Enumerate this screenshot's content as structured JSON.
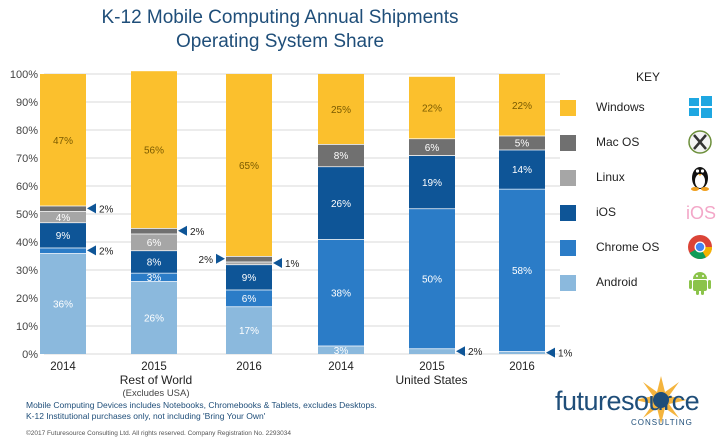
{
  "title_line1": "K-12 Mobile Computing Annual Shipments",
  "title_line2": "Operating System Share",
  "chart_data": {
    "type": "bar",
    "stacked": true,
    "ylim": [
      0,
      100
    ],
    "yticks": [
      "0%",
      "10%",
      "20%",
      "30%",
      "40%",
      "50%",
      "60%",
      "70%",
      "80%",
      "90%",
      "100%"
    ],
    "categories": [
      "2014",
      "2015",
      "2016",
      "2014",
      "2015",
      "2016"
    ],
    "groups": [
      {
        "label": "Rest of World",
        "sublabel": "(Excludes USA)",
        "bars": [
          0,
          1,
          2
        ]
      },
      {
        "label": "United States",
        "sublabel": "",
        "bars": [
          3,
          4,
          5
        ]
      }
    ],
    "series": [
      {
        "name": "Android",
        "color": "#8bb9dd",
        "values": [
          36,
          26,
          17,
          3,
          2,
          1
        ],
        "labels": [
          "36%",
          "26%",
          "17%",
          "3%",
          "",
          ""
        ]
      },
      {
        "name": "Chrome OS",
        "color": "#2b7cc7",
        "values": [
          2,
          3,
          6,
          38,
          50,
          58
        ],
        "labels": [
          "",
          "3%",
          "6%",
          "38%",
          "50%",
          "58%"
        ]
      },
      {
        "name": "iOS",
        "color": "#0e5597",
        "values": [
          9,
          8,
          9,
          26,
          19,
          14
        ],
        "labels": [
          "9%",
          "8%",
          "9%",
          "26%",
          "19%",
          "14%"
        ]
      },
      {
        "name": "Linux",
        "color": "#a6a6a6",
        "values": [
          4,
          6,
          1,
          0,
          0,
          0
        ],
        "labels": [
          "4%",
          "6%",
          "",
          "",
          "",
          ""
        ]
      },
      {
        "name": "Mac OS",
        "color": "#707070",
        "values": [
          2,
          2,
          2,
          8,
          6,
          5
        ],
        "labels": [
          "",
          "",
          "",
          "8%",
          "6%",
          "5%"
        ]
      },
      {
        "name": "Windows",
        "color": "#fbc02d",
        "values": [
          47,
          56,
          65,
          25,
          22,
          22
        ],
        "labels": [
          "47%",
          "56%",
          "65%",
          "25%",
          "22%",
          "22%"
        ]
      }
    ],
    "callouts": [
      {
        "bar": 0,
        "series": 4,
        "text": "2%",
        "side": "right"
      },
      {
        "bar": 0,
        "series": 1,
        "text": "2%",
        "side": "right"
      },
      {
        "bar": 1,
        "series": 4,
        "text": "2%",
        "side": "right"
      },
      {
        "bar": 2,
        "series": 4,
        "text": "2%",
        "side": "left"
      },
      {
        "bar": 2,
        "series": 3,
        "text": "1%",
        "side": "right"
      },
      {
        "bar": 4,
        "series": 0,
        "text": "2%",
        "side": "right"
      },
      {
        "bar": 5,
        "series": 0,
        "text": "1%",
        "side": "right"
      }
    ]
  },
  "key": {
    "title": "KEY",
    "items": [
      {
        "label": "Windows",
        "color": "#fbc02d",
        "icon": "windows-icon"
      },
      {
        "label": "Mac OS",
        "color": "#707070",
        "icon": "macos-x-icon"
      },
      {
        "label": "Linux",
        "color": "#a6a6a6",
        "icon": "tux-penguin-icon"
      },
      {
        "label": "iOS",
        "color": "#0e5597",
        "icon": "ios-icon",
        "icon_text": "iOS"
      },
      {
        "label": "Chrome OS",
        "color": "#2b7cc7",
        "icon": "chrome-icon"
      },
      {
        "label": "Android",
        "color": "#8bb9dd",
        "icon": "android-icon"
      }
    ]
  },
  "notes": {
    "line1": "Mobile Computing Devices includes Notebooks, Chromebooks & Tablets, excludes Desktops.",
    "line2": "K-12 Institutional purchases only, not including 'Bring Your Own'",
    "copyright": "©2017 Futuresource Consulting Ltd. All rights reserved. Company Registration No. 2293034"
  },
  "logo": {
    "name": "futuresource",
    "sub": "CONSULTING"
  }
}
